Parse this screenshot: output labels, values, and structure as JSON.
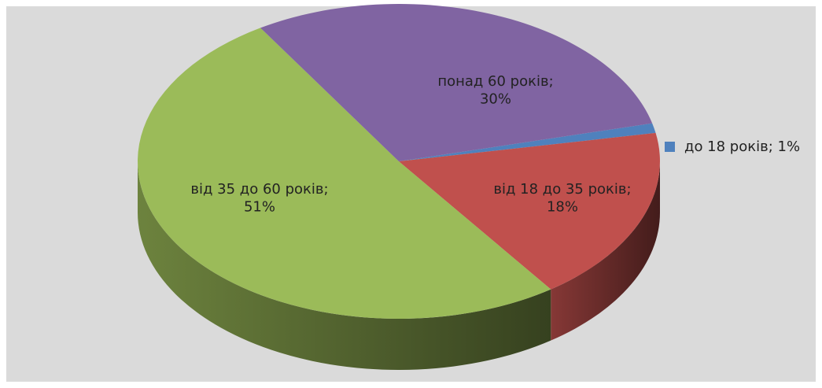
{
  "chart_data": {
    "type": "pie",
    "values": [
      1,
      18,
      51,
      30
    ],
    "value_labels": [
      "до 18 років; 1%",
      "від 18 до 35 років; 18%",
      "від 35 до 60 років; 51%",
      "понад 60 років; 30%"
    ],
    "colors": [
      "#4f81bd",
      "#c0504d",
      "#9bbb59",
      "#8064a2"
    ]
  }
}
